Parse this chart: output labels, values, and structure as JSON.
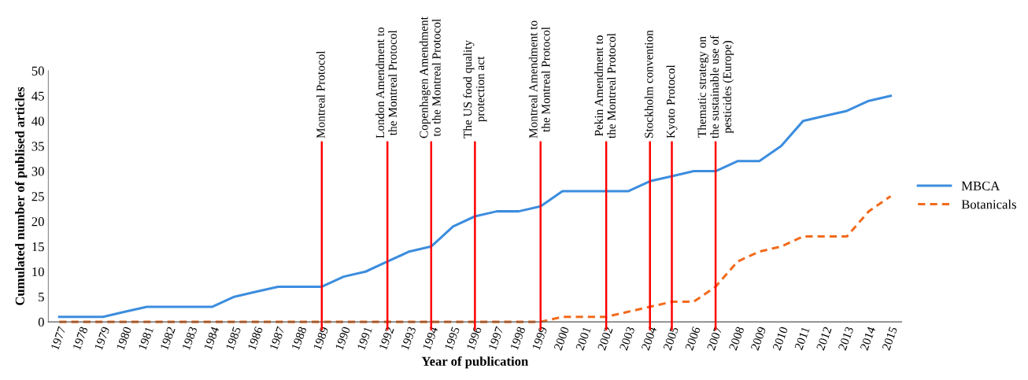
{
  "chart_data": {
    "type": "line",
    "xlabel": "Year of publication",
    "ylabel": "Cumulated number of publised articles",
    "categories": [
      "1977",
      "1978",
      "1979",
      "1980",
      "1981",
      "1982",
      "1983",
      "1984",
      "1985",
      "1986",
      "1987",
      "1988",
      "1989",
      "1990",
      "1991",
      "1992",
      "1993",
      "1994",
      "1995",
      "1996",
      "1997",
      "1998",
      "1999",
      "2000",
      "2001",
      "2002",
      "2003",
      "2004",
      "2005",
      "2006",
      "2007",
      "2008",
      "2009",
      "2010",
      "2011",
      "2012",
      "2013",
      "2014",
      "2015"
    ],
    "series": [
      {
        "name": "MBCA",
        "color": "#3c8dde",
        "line_style": "solid",
        "values": [
          1,
          1,
          1,
          2,
          3,
          3,
          3,
          3,
          5,
          6,
          7,
          7,
          7,
          9,
          10,
          12,
          14,
          15,
          19,
          21,
          22,
          22,
          23,
          26,
          26,
          26,
          26,
          28,
          29,
          30,
          30,
          32,
          32,
          35,
          40,
          41,
          42,
          44,
          45
        ]
      },
      {
        "name": "Botanicals",
        "color": "#f26b1d",
        "line_style": "dashed",
        "values": [
          0,
          0,
          0,
          0,
          0,
          0,
          0,
          0,
          0,
          0,
          0,
          0,
          0,
          0,
          0,
          0,
          0,
          0,
          0,
          0,
          0,
          0,
          0,
          1,
          1,
          1,
          2,
          3,
          4,
          4,
          7,
          12,
          14,
          15,
          17,
          17,
          17,
          22,
          25
        ]
      }
    ],
    "ylim": [
      0,
      50
    ],
    "yticks": [
      0,
      5,
      10,
      15,
      20,
      25,
      30,
      35,
      40,
      45,
      50
    ],
    "grid": false,
    "legend": "right",
    "marker": "none",
    "ref_lines": [
      {
        "axis": "x",
        "value": "1989",
        "label": "Montreal Protocol",
        "color": "#ff0000"
      },
      {
        "axis": "x",
        "value": "1992",
        "label": "London Amendment to\nthe Montreal Protocol",
        "color": "#ff0000"
      },
      {
        "axis": "x",
        "value": "1994",
        "label": "Copenhagen Amendment\nto the Montreal Protocol",
        "color": "#ff0000"
      },
      {
        "axis": "x",
        "value": "1996",
        "label": "The US food quality\nprotection act",
        "color": "#ff0000"
      },
      {
        "axis": "x",
        "value": "1999",
        "label": "Montreal Amendment to\nthe Montreal Protocol",
        "color": "#ff0000"
      },
      {
        "axis": "x",
        "value": "2002",
        "label": "Pekin Amendment to\nthe Montreal Protocol",
        "color": "#ff0000"
      },
      {
        "axis": "x",
        "value": "2004",
        "label": "Stockholm convention",
        "color": "#ff0000"
      },
      {
        "axis": "x",
        "value": "2005",
        "label": "Kyoto Protocol",
        "color": "#ff0000"
      },
      {
        "axis": "x",
        "value": "2007",
        "label": "Thematic strategy on\nthe sustainable use of\npesticides (Europe)",
        "color": "#ff0000"
      }
    ]
  }
}
